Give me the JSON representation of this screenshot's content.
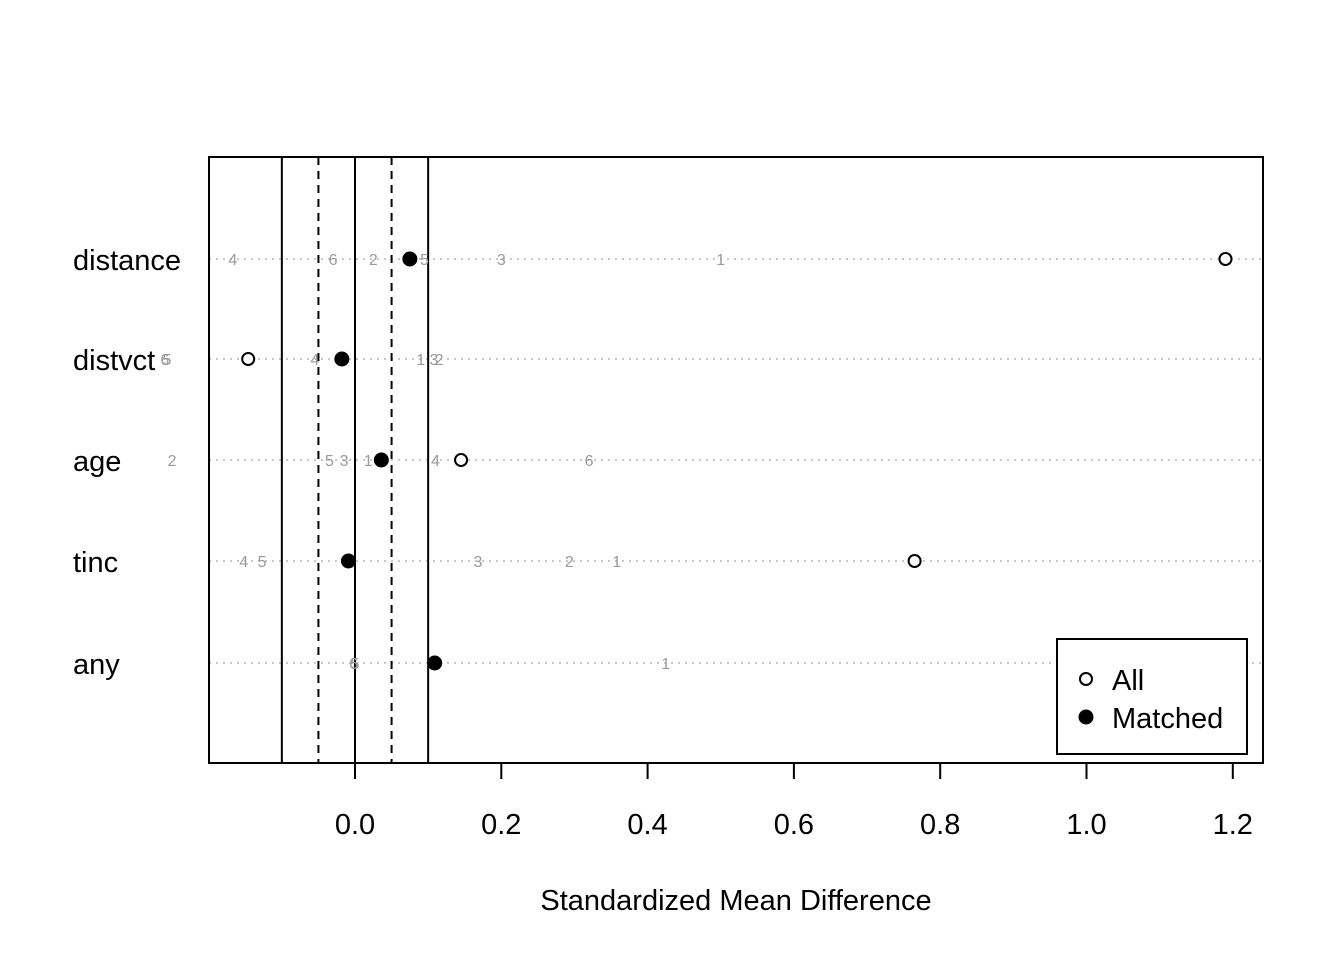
{
  "chart_data": {
    "type": "scatter",
    "title": "",
    "xlabel": "Standardized Mean Difference",
    "ylabel": "",
    "xlim": [
      -0.2,
      1.24
    ],
    "x_ticks": [
      0.0,
      0.2,
      0.4,
      0.6,
      0.8,
      1.0,
      1.2
    ],
    "x_tick_labels": [
      "0.0",
      "0.2",
      "0.4",
      "0.6",
      "0.8",
      "1.0",
      "1.2"
    ],
    "grid": "dotted horizontal lines per variable",
    "categories": [
      "distance",
      "distvct",
      "age",
      "tinc",
      "any"
    ],
    "reference_lines": {
      "solid": [
        -0.1,
        0.0,
        0.1
      ],
      "dashed": [
        -0.05,
        0.05
      ]
    },
    "series": [
      {
        "name": "All",
        "marker": "open-circle",
        "values": [
          1.19,
          -0.146,
          0.145,
          0.765,
          null
        ]
      },
      {
        "name": "Matched",
        "marker": "filled-circle",
        "values": [
          0.075,
          -0.018,
          0.036,
          -0.009,
          0.109
        ]
      }
    ],
    "subclass_labels": [
      {
        "variable": "distance",
        "labels": [
          "4",
          "6",
          "2",
          "5",
          "3",
          "1"
        ],
        "values": [
          -0.167,
          -0.03,
          0.025,
          0.095,
          0.2,
          0.5
        ]
      },
      {
        "variable": "distvct",
        "labels": [
          "6",
          "5",
          "4",
          "1",
          "3",
          "2"
        ],
        "values": [
          -0.26,
          -0.257,
          -0.055,
          0.09,
          0.108,
          0.115
        ]
      },
      {
        "variable": "age",
        "labels": [
          "2",
          "5",
          "3",
          "1",
          "4",
          "6"
        ],
        "values": [
          -0.25,
          -0.035,
          -0.015,
          0.018,
          0.11,
          0.32
        ]
      },
      {
        "variable": "tinc",
        "labels": [
          "4",
          "5",
          "3",
          "2",
          "1"
        ],
        "values": [
          -0.152,
          -0.127,
          0.168,
          0.293,
          0.358
        ]
      },
      {
        "variable": "any",
        "labels": [
          "6",
          "5",
          "1"
        ],
        "values": [
          -0.002,
          0.0,
          0.425
        ]
      }
    ],
    "legend": {
      "position": "bottom-right",
      "entries": [
        "All",
        "Matched"
      ]
    }
  }
}
